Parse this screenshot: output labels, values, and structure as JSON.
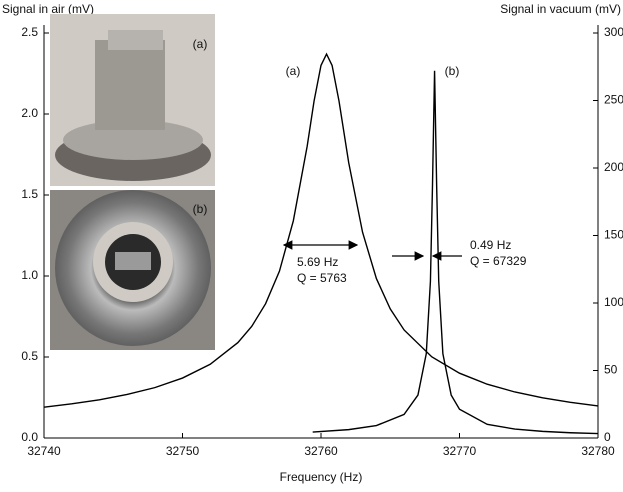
{
  "chart_data": {
    "type": "line",
    "title_left": "Signal in air (mV)",
    "title_right": "Signal in vacuum (mV)",
    "x_label": "Frequency (Hz)",
    "xlim": [
      32740,
      32780
    ],
    "xticks": [
      32740,
      32750,
      32760,
      32770,
      32780
    ],
    "ylim": [
      0,
      2.5
    ],
    "yticks": [
      {
        "value": 0,
        "label": "0.0"
      },
      {
        "value": 0.5,
        "label": "0.5"
      },
      {
        "value": 1,
        "label": "1.0"
      },
      {
        "value": 1.5,
        "label": "1.5"
      },
      {
        "value": 2,
        "label": "2.0"
      },
      {
        "value": 2.5,
        "label": "2.5"
      }
    ],
    "y2lim": [
      0,
      300
    ],
    "y2ticks": [
      0,
      50,
      100,
      150,
      200,
      250,
      300
    ],
    "series": [
      {
        "name": "(a)",
        "color": "#000000",
        "x": [
          32740,
          32742,
          32744,
          32746,
          32748,
          32750,
          32752,
          32754,
          32755,
          32756,
          32757,
          32758,
          32759,
          32759.5,
          32760,
          32760.4,
          32760.8,
          32761.3,
          32762,
          32763,
          32764,
          32765,
          32766,
          32768,
          32770,
          32772,
          32774,
          32776,
          32778,
          32780
        ],
        "values": [
          0.19,
          0.211,
          0.236,
          0.269,
          0.311,
          0.37,
          0.455,
          0.589,
          0.689,
          0.829,
          1.03,
          1.34,
          1.8,
          2.08,
          2.3,
          2.37,
          2.3,
          2.08,
          1.7,
          1.27,
          0.984,
          0.797,
          0.667,
          0.501,
          0.4,
          0.332,
          0.284,
          0.248,
          0.22,
          0.198
        ]
      },
      {
        "name": "(b)",
        "color": "#000000",
        "axis": "y2",
        "x": [
          32759.4,
          32762,
          32764,
          32766,
          32767,
          32767.6,
          32767.9,
          32768.05,
          32768.2,
          32768.35,
          32768.5,
          32768.8,
          32769.4,
          32770,
          32772,
          32774,
          32776,
          32778,
          32780
        ],
        "values": [
          4.4,
          6.2,
          9.2,
          17.5,
          31.8,
          62.4,
          116,
          187,
          272,
          187,
          116,
          62.4,
          31.8,
          21.3,
          10.1,
          6.6,
          4.9,
          3.9,
          3.3
        ]
      }
    ],
    "annotations": [
      "5.69 Hz",
      "Q = 5763",
      "0.49 Hz",
      "Q = 67329"
    ],
    "inset_labels": [
      "(a)",
      "(b)"
    ]
  }
}
